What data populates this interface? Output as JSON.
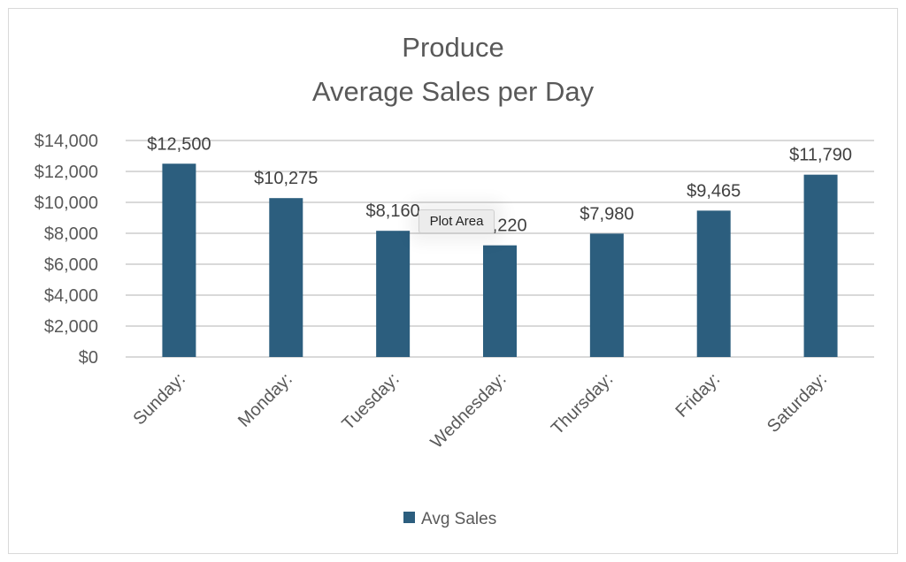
{
  "chart_data": {
    "type": "bar",
    "title": [
      "Produce",
      "Average Sales per Day"
    ],
    "categories": [
      "Sunday:",
      "Monday:",
      "Tuesday:",
      "Wednesday:",
      "Thursday:",
      "Friday:",
      "Saturday:"
    ],
    "series": [
      {
        "name": "Avg Sales",
        "values": [
          12500,
          10275,
          8160,
          7220,
          7980,
          9465,
          11790
        ],
        "color": "#2C5E7E"
      }
    ],
    "data_labels": [
      "$12,500",
      "$10,275",
      "$8,160",
      "$7,220",
      "$7,980",
      "$9,465",
      "$11,790"
    ],
    "yticks": [
      "$0",
      "$2,000",
      "$4,000",
      "$6,000",
      "$8,000",
      "$10,000",
      "$12,000",
      "$14,000"
    ],
    "ytick_values": [
      0,
      2000,
      4000,
      6000,
      8000,
      10000,
      12000,
      14000
    ],
    "ylim": [
      0,
      14000
    ],
    "xlabel": "",
    "ylabel": "",
    "grid": true,
    "legend": "bottom"
  },
  "tooltip": "Plot Area"
}
